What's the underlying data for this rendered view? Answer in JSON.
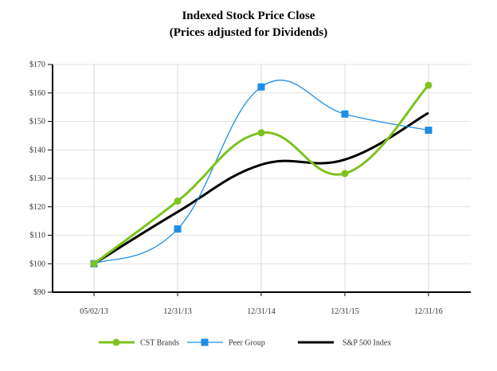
{
  "chart_data": {
    "type": "line",
    "title": "Indexed Stock Price Close",
    "subtitle": "(Prices adjusted for Dividends)",
    "xlabel": "",
    "ylabel": "",
    "categories": [
      "05/02/13",
      "12/31/13",
      "12/31/14",
      "12/31/15",
      "12/31/16"
    ],
    "ylim": [
      90,
      170
    ],
    "yticks": [
      90,
      100,
      110,
      120,
      130,
      140,
      150,
      160,
      170
    ],
    "ytick_labels": [
      "$90",
      "$100",
      "$110",
      "$120",
      "$130",
      "$140",
      "$150",
      "$160",
      "$170"
    ],
    "grid": true,
    "smoothed": true,
    "legend_position": "bottom",
    "series": [
      {
        "name": "CST Brands",
        "values": [
          100,
          122,
          146,
          131.7,
          162.7
        ],
        "color": "#7dc21e",
        "marker": "circle"
      },
      {
        "name": "Peer Group",
        "values": [
          100,
          112.2,
          162.1,
          152.6,
          146.9
        ],
        "color": "#1c8ee6",
        "marker": "square"
      },
      {
        "name": "S&P 500 Index",
        "values": [
          100,
          118.2,
          134.8,
          136.6,
          153
        ],
        "color": "#000000",
        "marker": "none"
      }
    ]
  }
}
